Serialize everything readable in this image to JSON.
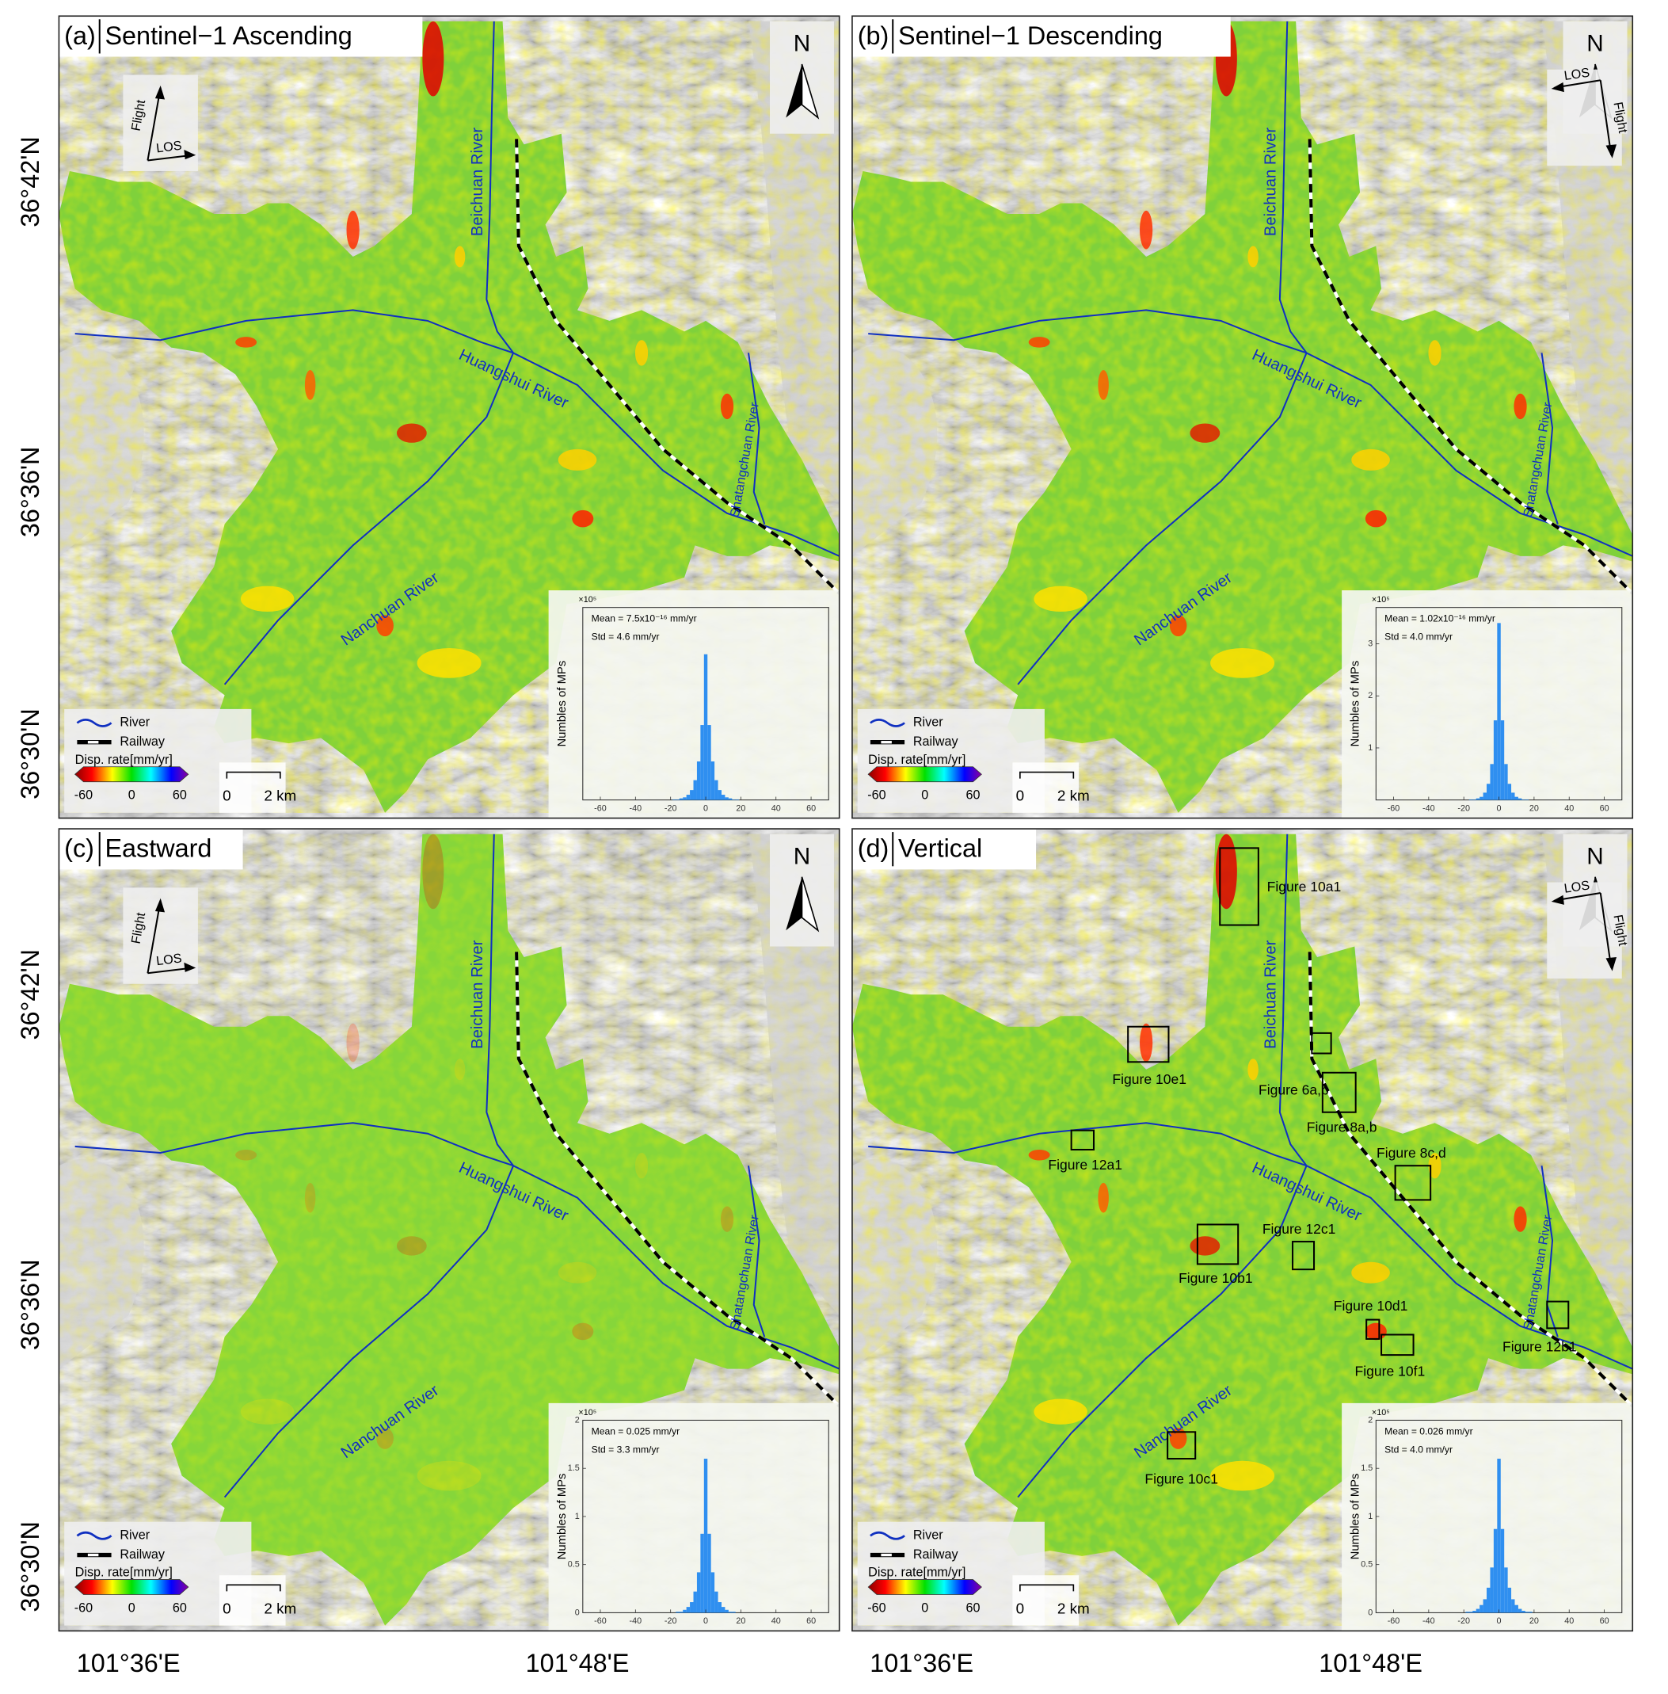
{
  "y_axis_labels": [
    "36°42'N",
    "36°36'N",
    "36°30'N"
  ],
  "x_axis_labels": [
    "101°36'E",
    "101°48'E"
  ],
  "panels": [
    {
      "label": "(a)",
      "title": "Sentinel−1 Ascending",
      "north": "N",
      "flight": "Flight",
      "los": "LOS",
      "rivers": [
        "Beichuan River",
        "Huangshui River",
        "Nanchuan River",
        "Shatangchuan River"
      ],
      "legend": {
        "river": "River",
        "railway": "Railway",
        "colorbar_title": "Disp. rate[mm/yr]",
        "colorbar_ticks": [
          -60,
          0,
          60
        ]
      },
      "scale_bar": {
        "start": "0",
        "end": "2 km"
      },
      "histogram": {
        "ylabel": "Numbles of MPs",
        "multiplier": "×10⁵",
        "mean": "Mean = 7.5x10⁻¹⁶ mm/yr",
        "std": "Std = 4.6 mm/yr",
        "xlim": [
          -70,
          70
        ],
        "xticks": [
          -60,
          -40,
          -20,
          0,
          20,
          40,
          60
        ],
        "ylim": [
          0,
          3.7
        ],
        "yticks": [],
        "bins": [
          -21,
          -19,
          -17,
          -15,
          -13,
          -11,
          -9,
          -7,
          -5,
          -3,
          -1,
          1,
          3,
          5,
          7,
          9,
          11,
          13,
          15,
          17,
          19,
          21
        ],
        "counts": [
          0,
          0.01,
          0.01,
          0.03,
          0.05,
          0.1,
          0.19,
          0.38,
          0.74,
          1.44,
          2.8,
          1.44,
          0.74,
          0.38,
          0.19,
          0.1,
          0.05,
          0.03,
          0.01,
          0.01,
          0
        ],
        "color": "#2f8ff0"
      }
    },
    {
      "label": "(b)",
      "title": "Sentinel−1 Descending",
      "north": "N",
      "flight": "Flight",
      "los": "LOS",
      "rivers": [
        "Beichuan River",
        "Huangshui River",
        "Nanchuan River",
        "Shatangchuan River"
      ],
      "legend": {
        "river": "River",
        "railway": "Railway",
        "colorbar_title": "Disp. rate[mm/yr]",
        "colorbar_ticks": [
          -60,
          0,
          60
        ]
      },
      "scale_bar": {
        "start": "0",
        "end": "2 km"
      },
      "histogram": {
        "ylabel": "Numbles of MPs",
        "multiplier": "×10⁵",
        "mean": "Mean = 1.02x10⁻¹⁶ mm/yr",
        "std": "Std = 4.0 mm/yr",
        "xlim": [
          -70,
          70
        ],
        "xticks": [
          -60,
          -40,
          -20,
          0,
          20,
          40,
          60
        ],
        "ylim": [
          0,
          3.7
        ],
        "yticks": [
          1,
          2,
          3
        ],
        "bins": [
          -21,
          -19,
          -17,
          -15,
          -13,
          -11,
          -9,
          -7,
          -5,
          -3,
          -1,
          1,
          3,
          5,
          7,
          9,
          11,
          13,
          15,
          17,
          19,
          21
        ],
        "counts": [
          0,
          0,
          0.01,
          0.01,
          0.03,
          0.06,
          0.14,
          0.31,
          0.69,
          1.53,
          3.4,
          1.53,
          0.69,
          0.31,
          0.14,
          0.06,
          0.03,
          0.01,
          0.01,
          0,
          0
        ],
        "color": "#2f8ff0"
      }
    },
    {
      "label": "(c)",
      "title": "Eastward",
      "north": "N",
      "flight": "Flight",
      "los": "LOS",
      "rivers": [
        "Beichuan River",
        "Huangshui River",
        "Nanchuan River",
        "Shatangchuan River"
      ],
      "legend": {
        "river": "River",
        "railway": "Railway",
        "colorbar_title": "Disp. rate[mm/yr]",
        "colorbar_ticks": [
          -60,
          0,
          60
        ]
      },
      "scale_bar": {
        "start": "0",
        "end": "2 km"
      },
      "histogram": {
        "ylabel": "Numbles of MPs",
        "multiplier": "×10⁵",
        "mean": "Mean = 0.025 mm/yr",
        "std": "Std = 3.3 mm/yr",
        "xlim": [
          -70,
          70
        ],
        "xticks": [
          -60,
          -40,
          -20,
          0,
          20,
          40,
          60
        ],
        "ylim": [
          0,
          2
        ],
        "yticks": [
          0,
          0.5,
          1,
          1.5,
          2
        ],
        "bins": [
          -21,
          -19,
          -17,
          -15,
          -13,
          -11,
          -9,
          -7,
          -5,
          -3,
          -1,
          1,
          3,
          5,
          7,
          9,
          11,
          13,
          15,
          17,
          19,
          21
        ],
        "counts": [
          0,
          0,
          0.01,
          0.01,
          0.03,
          0.06,
          0.11,
          0.22,
          0.42,
          0.82,
          1.6,
          0.82,
          0.42,
          0.22,
          0.11,
          0.06,
          0.03,
          0.01,
          0.01,
          0,
          0
        ],
        "color": "#2f8ff0"
      }
    },
    {
      "label": "(d)",
      "title": "Vertical",
      "north": "N",
      "flight": "Flight",
      "los": "LOS",
      "rivers": [
        "Beichuan River",
        "Huangshui River",
        "Nanchuan River",
        "Shatangchuan River"
      ],
      "legend": {
        "river": "River",
        "railway": "Railway",
        "colorbar_title": "Disp. rate[mm/yr]",
        "colorbar_ticks": [
          -60,
          0,
          60
        ]
      },
      "scale_bar": {
        "start": "0",
        "end": "2 km"
      },
      "histogram": {
        "ylabel": "Numbles of MPs",
        "multiplier": "×10⁵",
        "mean": "Mean = 0.026 mm/yr",
        "std": "Std = 4.0 mm/yr",
        "xlim": [
          -70,
          70
        ],
        "xticks": [
          -60,
          -40,
          -20,
          0,
          20,
          40,
          60
        ],
        "ylim": [
          0,
          2
        ],
        "yticks": [
          0,
          0.5,
          1,
          1.5,
          2
        ],
        "bins": [
          -21,
          -19,
          -17,
          -15,
          -13,
          -11,
          -9,
          -7,
          -5,
          -3,
          -1,
          1,
          3,
          5,
          7,
          9,
          11,
          13,
          15,
          17,
          19,
          21
        ],
        "counts": [
          0,
          0.01,
          0.01,
          0.02,
          0.04,
          0.08,
          0.14,
          0.26,
          0.47,
          0.87,
          1.6,
          0.87,
          0.47,
          0.26,
          0.14,
          0.08,
          0.04,
          0.02,
          0.01,
          0.01,
          0
        ],
        "color": "#2f8ff0"
      },
      "figure_boxes": [
        "Figure 10a1",
        "Figure 10e1",
        "Figure 6a,b",
        "Figure 8a,b",
        "Figure 12a1",
        "Figure 8c,d",
        "Figure 12c1",
        "Figure 10b1",
        "Figure 10d1",
        "Figure 10f1",
        "Figure 12b1",
        "Figure 10c1"
      ]
    }
  ]
}
